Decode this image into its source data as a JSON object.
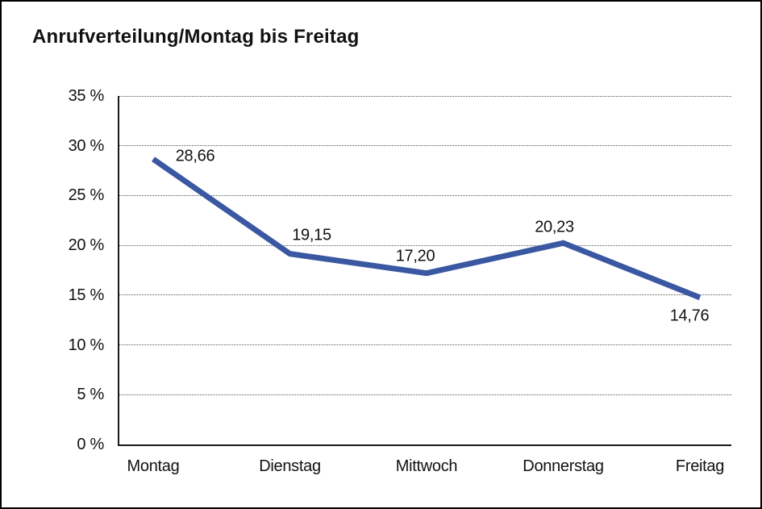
{
  "chart_data": {
    "type": "line",
    "title": "Anrufverteilung/Montag bis Freitag",
    "categories": [
      "Montag",
      "Dienstag",
      "Mittwoch",
      "Donnerstag",
      "Freitag"
    ],
    "values": [
      28.66,
      19.15,
      17.2,
      20.23,
      14.76
    ],
    "value_labels": [
      "28,66",
      "19,15",
      "17,20",
      "20,23",
      "14,76"
    ],
    "series_name": "Anrufverteilung",
    "xlabel": "",
    "ylabel": "",
    "ylim": [
      0,
      35
    ],
    "y_tick_values": [
      35,
      30,
      25,
      20,
      15,
      10,
      5,
      0
    ],
    "y_tick_labels": [
      "35 %",
      "30 %",
      "25 %",
      "20 %",
      "15 %",
      "10 %",
      "5 %",
      "0 %"
    ],
    "grid": "horizontal-dotted",
    "legend": "none",
    "line_color": "#3A57A2",
    "axis_color": "#1a1a1a",
    "gridline_color": "#555555",
    "background_color": "#ffffff"
  }
}
